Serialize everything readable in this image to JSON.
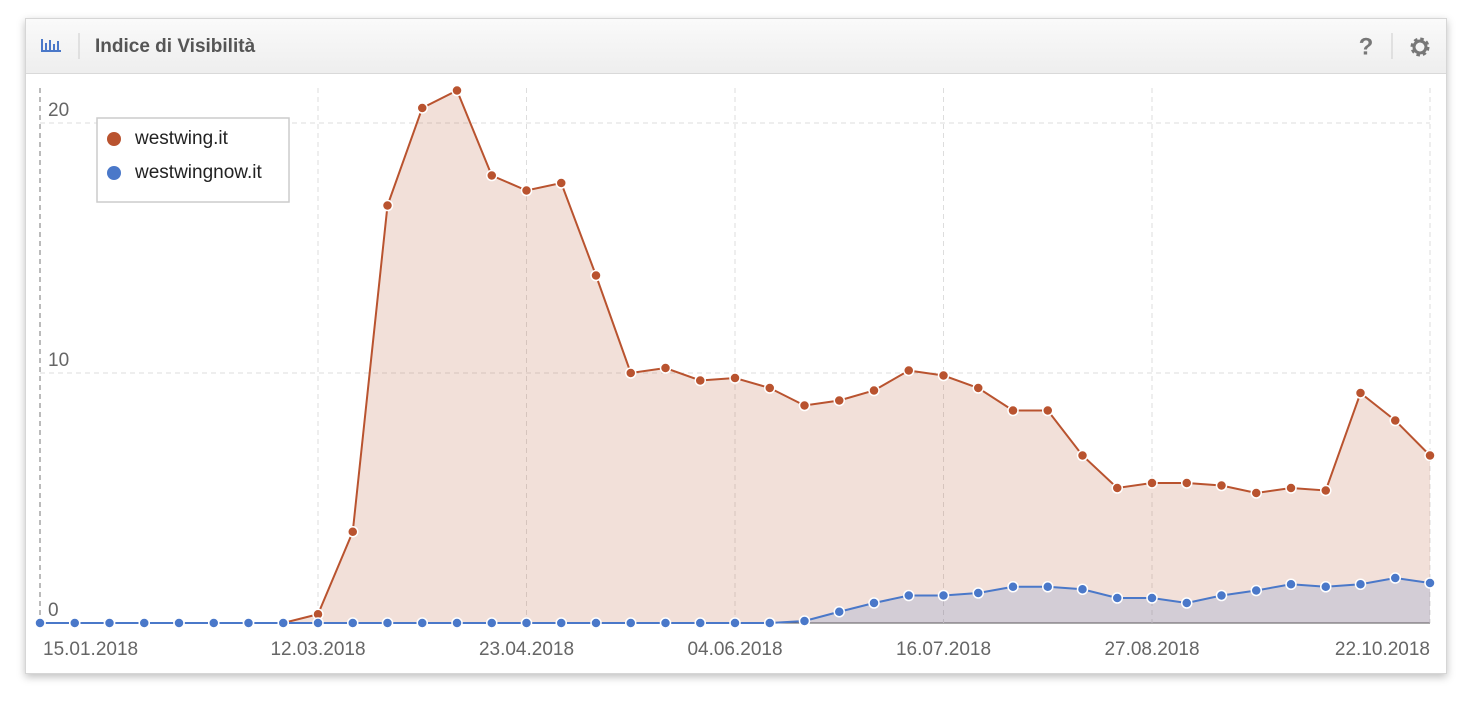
{
  "chart_data": {
    "type": "line",
    "title": "Indice di Visibilità",
    "x": [
      "15.01.2018",
      "22.01.2018",
      "29.01.2018",
      "05.02.2018",
      "12.02.2018",
      "19.02.2018",
      "26.02.2018",
      "05.03.2018",
      "12.03.2018",
      "19.03.2018",
      "26.03.2018",
      "02.04.2018",
      "09.04.2018",
      "16.04.2018",
      "23.04.2018",
      "30.04.2018",
      "07.05.2018",
      "14.05.2018",
      "21.05.2018",
      "28.05.2018",
      "04.06.2018",
      "11.06.2018",
      "18.06.2018",
      "25.06.2018",
      "02.07.2018",
      "09.07.2018",
      "16.07.2018",
      "23.07.2018",
      "30.07.2018",
      "06.08.2018",
      "13.08.2018",
      "20.08.2018",
      "27.08.2018",
      "03.09.2018",
      "10.09.2018",
      "17.09.2018",
      "24.09.2018",
      "01.10.2018",
      "08.10.2018",
      "15.10.2018",
      "22.10.2018"
    ],
    "series": [
      {
        "name": "westwing.it",
        "color": "#b9532f",
        "values": [
          0,
          0,
          0,
          0,
          0,
          0,
          0,
          0,
          0.35,
          3.65,
          16.7,
          20.6,
          21.3,
          17.9,
          17.3,
          17.6,
          13.9,
          10.0,
          10.2,
          9.7,
          9.8,
          9.4,
          8.7,
          8.9,
          9.3,
          10.1,
          9.9,
          9.4,
          8.5,
          8.5,
          6.7,
          5.4,
          5.6,
          5.6,
          5.5,
          5.2,
          5.4,
          5.3,
          9.2,
          8.1,
          6.7
        ]
      },
      {
        "name": "westwingnow.it",
        "color": "#4a78c9",
        "values": [
          0,
          0,
          0,
          0,
          0,
          0,
          0,
          0,
          0,
          0,
          0,
          0,
          0,
          0,
          0,
          0,
          0,
          0,
          0,
          0,
          0,
          0,
          0.08,
          0.45,
          0.8,
          1.1,
          1.1,
          1.2,
          1.45,
          1.45,
          1.35,
          1.0,
          1.0,
          0.8,
          1.1,
          1.3,
          1.55,
          1.45,
          1.55,
          1.8,
          1.6
        ]
      }
    ],
    "xlim": [
      "15.01.2018",
      "22.10.2018"
    ],
    "xticks": [
      "15.01.2018",
      "12.03.2018",
      "23.04.2018",
      "04.06.2018",
      "16.07.2018",
      "27.08.2018",
      "22.10.2018"
    ],
    "ylim": [
      0,
      21.4
    ],
    "yticks": [
      0,
      10,
      20
    ],
    "grid": true,
    "area": true,
    "legend": "upper left"
  }
}
